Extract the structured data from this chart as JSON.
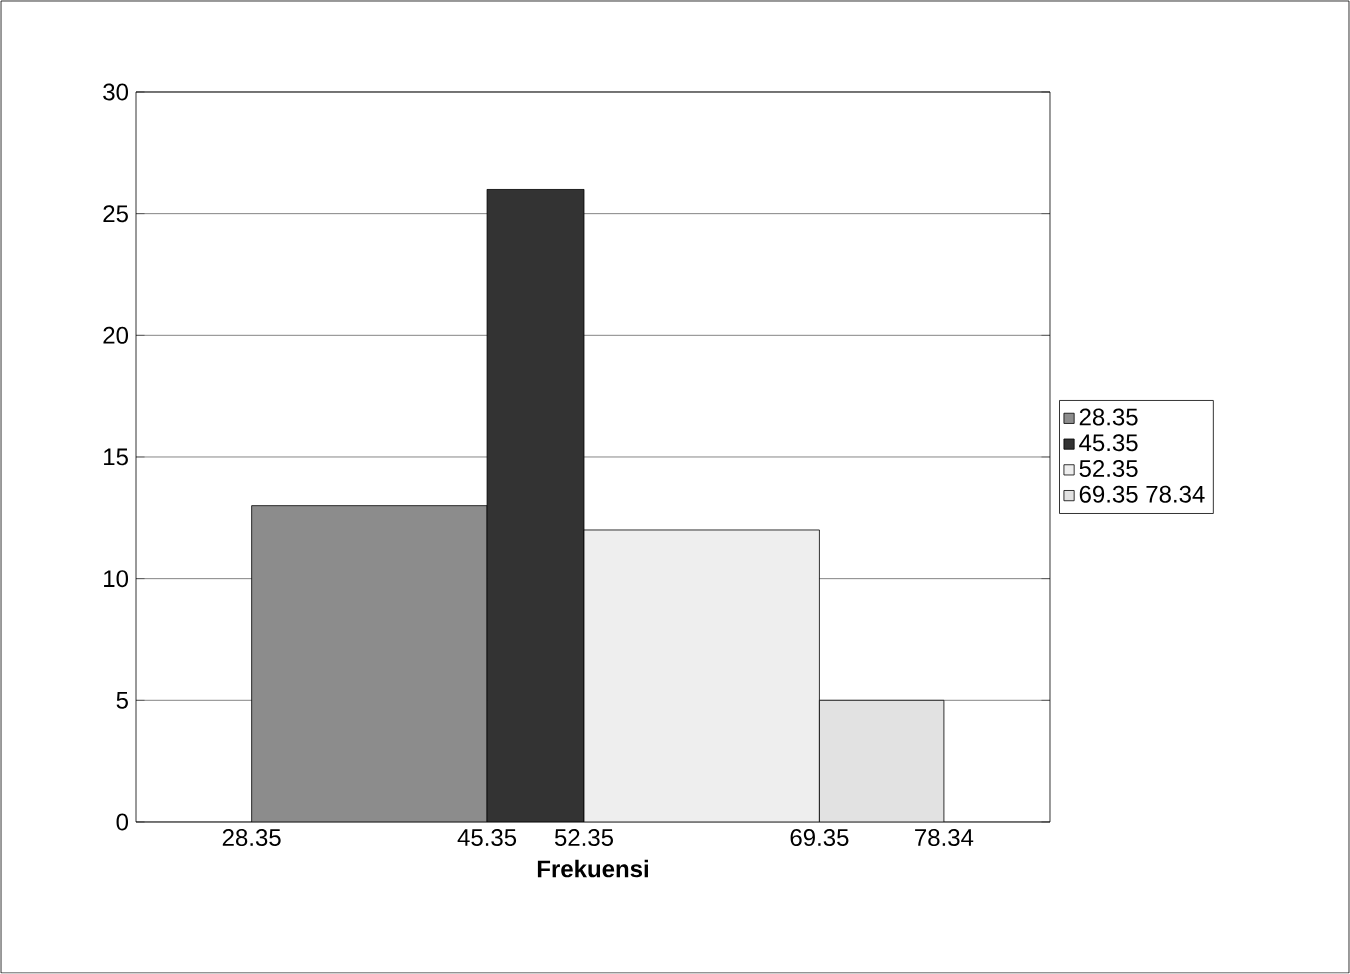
{
  "chart_data": {
    "type": "histogram",
    "xlabel": "Frekuensi",
    "bins": [
      28.35,
      45.35,
      52.35,
      69.35,
      78.34
    ],
    "series": [
      {
        "name": "28.35",
        "color": "#8c8c8c",
        "values": [
          13,
          null,
          null,
          null
        ]
      },
      {
        "name": "45.35",
        "color": "#333333",
        "values": [
          null,
          26,
          null,
          null
        ]
      },
      {
        "name": "52.35",
        "color": "#eeeeee",
        "values": [
          null,
          null,
          12,
          null
        ]
      },
      {
        "name": "69.35 78.34",
        "color": "#e2e2e2",
        "values": [
          null,
          null,
          null,
          5
        ]
      }
    ],
    "xlim": [
      20,
      86
    ],
    "xticks": [
      28.35,
      45.35,
      52.35,
      69.35,
      78.34
    ],
    "ylim": [
      0,
      30
    ],
    "yticks": [
      0,
      5,
      10,
      15,
      20,
      25,
      30
    ],
    "grid": "y",
    "legend": "right"
  }
}
